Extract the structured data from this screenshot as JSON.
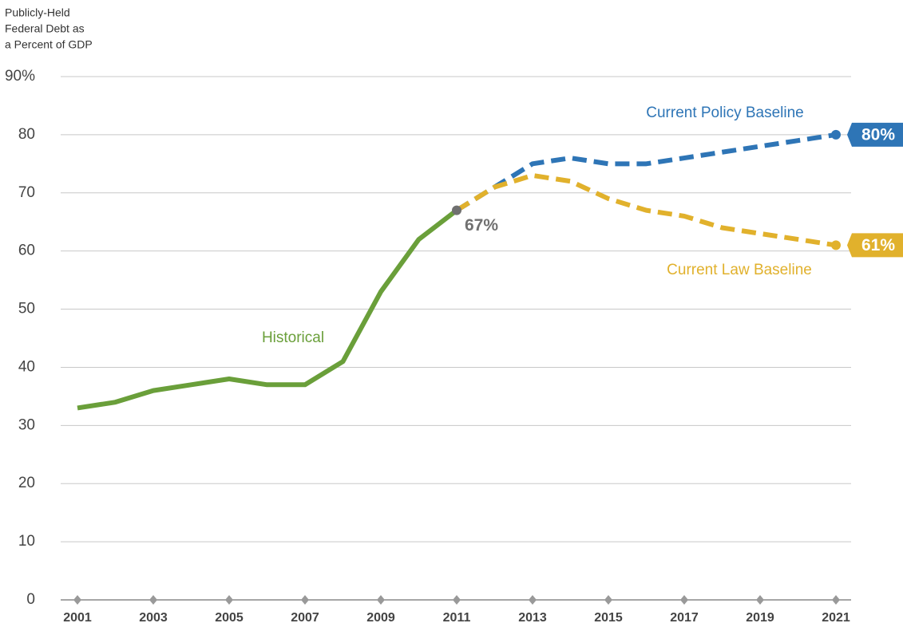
{
  "chart_data": {
    "type": "line",
    "ylabel": [
      "Publicly-Held",
      "Federal Debt as",
      "a Percent of GDP"
    ],
    "x": [
      2001,
      2002,
      2003,
      2004,
      2005,
      2006,
      2007,
      2008,
      2009,
      2010,
      2011,
      2012,
      2013,
      2014,
      2015,
      2016,
      2017,
      2018,
      2019,
      2020,
      2021
    ],
    "xlim": [
      2001,
      2021
    ],
    "xticks": [
      2001,
      2003,
      2005,
      2007,
      2009,
      2011,
      2013,
      2015,
      2017,
      2019,
      2021
    ],
    "ylim": [
      0,
      90
    ],
    "yticks": [
      0,
      10,
      20,
      30,
      40,
      50,
      60,
      70,
      80,
      {
        "value": 90,
        "label": "90%"
      }
    ],
    "grid": true,
    "series": [
      {
        "name": "Current Policy Baseline",
        "color": "#2e75b6",
        "dashed": true,
        "end_marker_color": "#2e75b6",
        "values": [
          null,
          null,
          null,
          null,
          null,
          null,
          null,
          null,
          null,
          null,
          67,
          71,
          75,
          76,
          75,
          75,
          76,
          77,
          78,
          79,
          80
        ],
        "value_labels": [
          null,
          null,
          null,
          null,
          null,
          null,
          null,
          null,
          null,
          null,
          null,
          null,
          null,
          null,
          null,
          null,
          null,
          null,
          null,
          null,
          "80%"
        ]
      },
      {
        "name": "Current Law Baseline",
        "color": "#e1b12c",
        "dashed": true,
        "end_marker_color": "#e1b12c",
        "values": [
          null,
          null,
          null,
          null,
          null,
          null,
          null,
          null,
          null,
          null,
          67,
          71,
          73,
          72,
          69,
          67,
          66,
          64,
          63,
          62,
          61
        ],
        "value_labels": [
          null,
          null,
          null,
          null,
          null,
          null,
          null,
          null,
          null,
          null,
          null,
          null,
          null,
          null,
          null,
          null,
          null,
          null,
          null,
          null,
          "61%"
        ]
      },
      {
        "name": "Historical",
        "color": "#6a9f3a",
        "dashed": false,
        "end_marker_color": "#707070",
        "values": [
          33,
          34,
          36,
          37,
          38,
          37,
          37,
          41,
          53,
          62,
          67,
          null,
          null,
          null,
          null,
          null,
          null,
          null,
          null,
          null,
          null
        ],
        "value_labels": [
          null,
          null,
          null,
          null,
          null,
          null,
          null,
          null,
          null,
          null,
          "67%",
          null,
          null,
          null,
          null,
          null,
          null,
          null,
          null,
          null,
          null
        ]
      }
    ]
  }
}
